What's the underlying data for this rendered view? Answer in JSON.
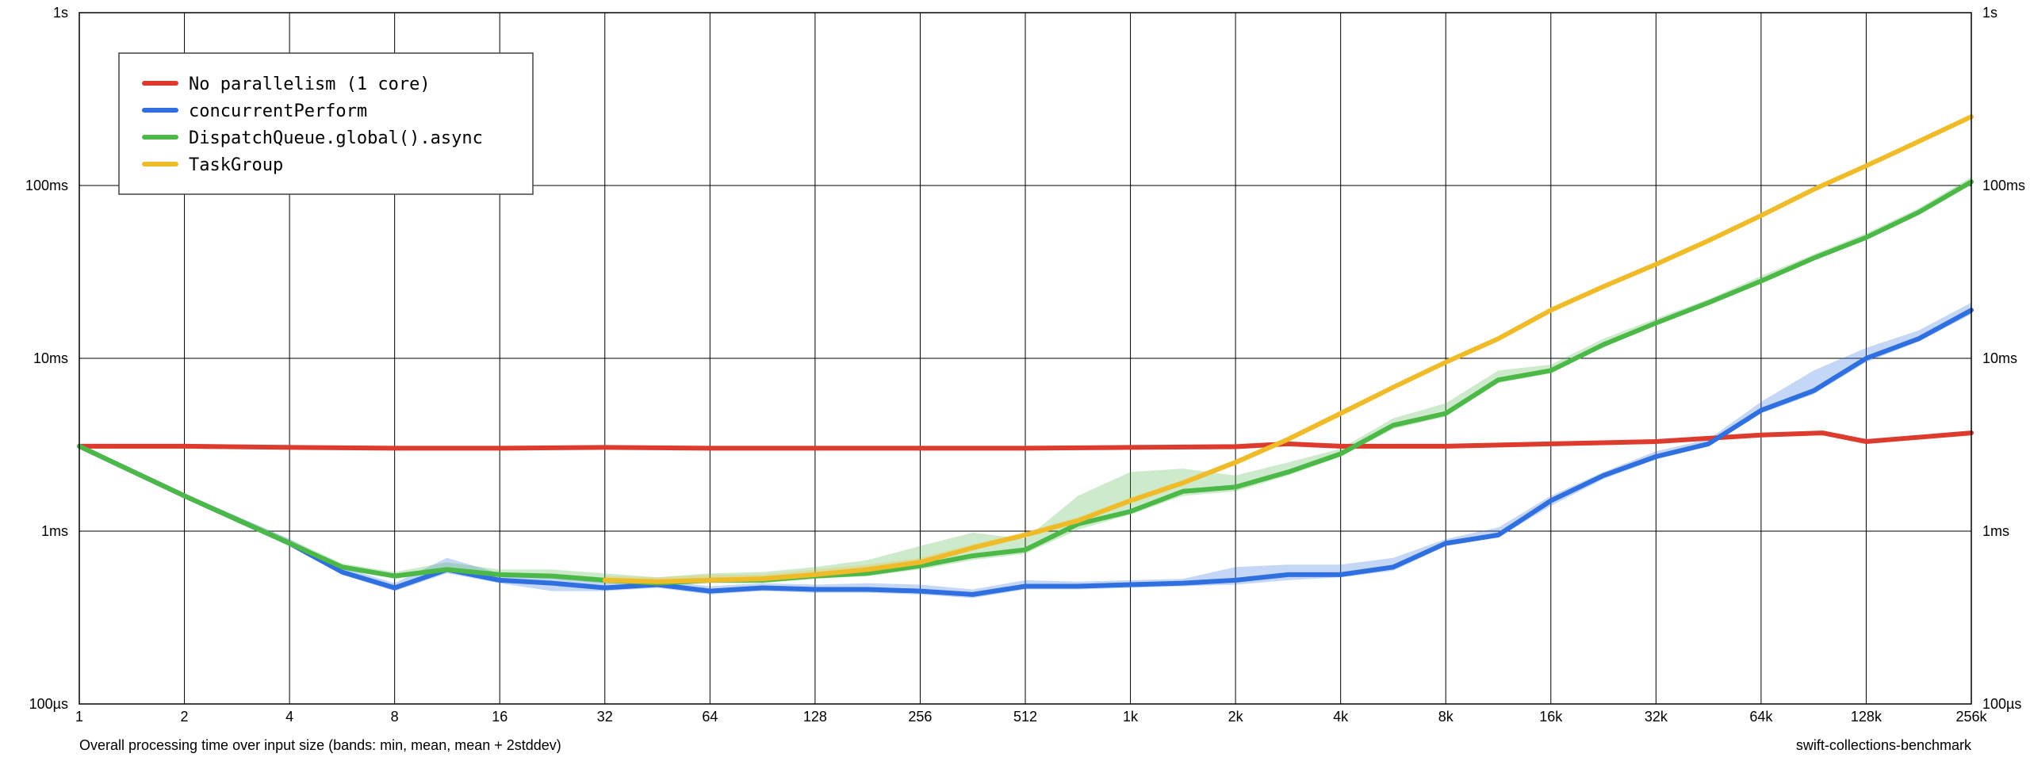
{
  "chart_data": {
    "type": "line",
    "x_scale": "log2",
    "y_scale": "log10",
    "x_ticks": [
      "1",
      "2",
      "4",
      "8",
      "16",
      "32",
      "64",
      "128",
      "256",
      "512",
      "1k",
      "2k",
      "4k",
      "8k",
      "16k",
      "32k",
      "64k",
      "128k",
      "256k"
    ],
    "x_tick_values": [
      1,
      2,
      4,
      8,
      16,
      32,
      64,
      128,
      256,
      512,
      1024,
      2048,
      4096,
      8192,
      16384,
      32768,
      65536,
      131072,
      262144
    ],
    "y_ticks": [
      "100µs",
      "1ms",
      "10ms",
      "100ms",
      "1s"
    ],
    "y_tick_values": [
      0.0001,
      0.001,
      0.01,
      0.1,
      1
    ],
    "xlim": [
      1,
      262144
    ],
    "ylim": [
      0.0001,
      1
    ],
    "grid": true,
    "legend_position": "top-left",
    "caption_left": "Overall processing time over input size (bands: min, mean, mean + 2stddev)",
    "caption_right": "swift-collections-benchmark",
    "colors": {
      "No parallelism (1 core)": "#dc3b2e",
      "concurrentPerform": "#2f6fe0",
      "DispatchQueue.global().async": "#4cb847",
      "TaskGroup": "#f0bb28"
    },
    "series": [
      {
        "name": "No parallelism (1 core)",
        "x": [
          1,
          2,
          4,
          8,
          16,
          32,
          64,
          128,
          256,
          512,
          1024,
          2048,
          2896,
          4096,
          8192,
          16384,
          32768,
          65536,
          98304,
          131072,
          262144
        ],
        "y": [
          0.0031,
          0.0031,
          0.00305,
          0.00302,
          0.00302,
          0.00305,
          0.00302,
          0.00302,
          0.00302,
          0.00302,
          0.00305,
          0.00308,
          0.0032,
          0.0031,
          0.0031,
          0.0032,
          0.0033,
          0.0036,
          0.0037,
          0.0033,
          0.0037
        ],
        "band_low": [
          0.003,
          0.003,
          0.00298,
          0.00297,
          0.00297,
          0.00298,
          0.00297,
          0.00297,
          0.00297,
          0.00297,
          0.00298,
          0.003,
          0.0031,
          0.003,
          0.003,
          0.0031,
          0.0032,
          0.0035,
          0.0036,
          0.0032,
          0.0036
        ],
        "band_high": [
          0.0032,
          0.0032,
          0.00315,
          0.0031,
          0.0031,
          0.00315,
          0.0031,
          0.0031,
          0.0031,
          0.0031,
          0.00315,
          0.0032,
          0.0033,
          0.0032,
          0.0032,
          0.0033,
          0.0034,
          0.0037,
          0.0038,
          0.0034,
          0.0038
        ]
      },
      {
        "name": "concurrentPerform",
        "x": [
          1,
          2,
          4,
          5.66,
          8,
          11.3,
          16,
          22.6,
          32,
          45.3,
          64,
          90.5,
          128,
          181,
          256,
          362,
          512,
          724,
          1024,
          1448,
          2048,
          2896,
          4096,
          5793,
          8192,
          11585,
          16384,
          23170,
          32768,
          46341,
          65536,
          92682,
          131072,
          185364,
          262144
        ],
        "y": [
          0.0031,
          0.0016,
          0.00085,
          0.00058,
          0.00047,
          0.0006,
          0.00052,
          0.0005,
          0.00047,
          0.00049,
          0.00045,
          0.00047,
          0.00046,
          0.00046,
          0.00045,
          0.00043,
          0.00048,
          0.00048,
          0.00049,
          0.0005,
          0.00052,
          0.00056,
          0.00056,
          0.00062,
          0.00085,
          0.00095,
          0.0015,
          0.0021,
          0.0027,
          0.0032,
          0.005,
          0.0065,
          0.01,
          0.013,
          0.019
        ],
        "band_low": [
          0.003,
          0.00155,
          0.00082,
          0.00056,
          0.00045,
          0.00057,
          0.0005,
          0.00045,
          0.00045,
          0.00047,
          0.00043,
          0.00045,
          0.00044,
          0.00044,
          0.00043,
          0.00041,
          0.00046,
          0.00046,
          0.00047,
          0.00048,
          0.00049,
          0.00052,
          0.00054,
          0.00059,
          0.00082,
          0.00092,
          0.0014,
          0.002,
          0.0026,
          0.0031,
          0.0048,
          0.0062,
          0.0095,
          0.0125,
          0.018
        ],
        "band_high": [
          0.0032,
          0.00165,
          0.0009,
          0.00062,
          0.0005,
          0.0007,
          0.00057,
          0.00056,
          0.00052,
          0.00052,
          0.00048,
          0.0005,
          0.00049,
          0.0005,
          0.00049,
          0.00046,
          0.00052,
          0.00051,
          0.00052,
          0.00053,
          0.00062,
          0.00064,
          0.00064,
          0.0007,
          0.0009,
          0.00105,
          0.0016,
          0.0022,
          0.0029,
          0.0034,
          0.0056,
          0.0085,
          0.0115,
          0.0145,
          0.021
        ]
      },
      {
        "name": "DispatchQueue.global().async",
        "x": [
          1,
          2,
          4,
          5.66,
          8,
          11.3,
          16,
          22.6,
          32,
          45.3,
          64,
          90.5,
          128,
          181,
          256,
          362,
          512,
          724,
          1024,
          1448,
          2048,
          2896,
          4096,
          5793,
          8192,
          11585,
          16384,
          23170,
          32768,
          46341,
          65536,
          92682,
          131072,
          185364,
          262144
        ],
        "y": [
          0.0031,
          0.0016,
          0.00085,
          0.00062,
          0.00055,
          0.0006,
          0.00056,
          0.00055,
          0.00052,
          0.0005,
          0.00052,
          0.00052,
          0.00055,
          0.00057,
          0.00063,
          0.00072,
          0.00078,
          0.0011,
          0.0013,
          0.0017,
          0.0018,
          0.0022,
          0.0028,
          0.0041,
          0.0048,
          0.0075,
          0.0085,
          0.012,
          0.016,
          0.021,
          0.028,
          0.038,
          0.05,
          0.07,
          0.105
        ],
        "band_low": [
          0.003,
          0.00155,
          0.00082,
          0.0006,
          0.00053,
          0.00058,
          0.00054,
          0.00053,
          0.0005,
          0.00048,
          0.0005,
          0.0005,
          0.00053,
          0.00055,
          0.0006,
          0.00068,
          0.00074,
          0.00102,
          0.00125,
          0.0016,
          0.0017,
          0.0021,
          0.0027,
          0.0039,
          0.0046,
          0.0072,
          0.0082,
          0.0116,
          0.0155,
          0.0205,
          0.027,
          0.037,
          0.049,
          0.068,
          0.102
        ],
        "band_high": [
          0.0032,
          0.00165,
          0.0009,
          0.00065,
          0.00058,
          0.00066,
          0.0006,
          0.0006,
          0.00057,
          0.00054,
          0.00057,
          0.00058,
          0.00062,
          0.00068,
          0.00082,
          0.00098,
          0.0009,
          0.0016,
          0.0022,
          0.0023,
          0.0021,
          0.0025,
          0.003,
          0.0045,
          0.0055,
          0.0085,
          0.0092,
          0.013,
          0.017,
          0.022,
          0.03,
          0.04,
          0.053,
          0.074,
          0.112
        ]
      },
      {
        "name": "TaskGroup",
        "x": [
          32,
          45.3,
          64,
          90.5,
          128,
          181,
          256,
          362,
          512,
          724,
          1024,
          1448,
          2048,
          2896,
          4096,
          5793,
          8192,
          11585,
          16384,
          23170,
          32768,
          46341,
          65536,
          92682,
          131072,
          185364,
          262144
        ],
        "y": [
          0.00052,
          0.00051,
          0.00052,
          0.00053,
          0.00056,
          0.0006,
          0.00066,
          0.0008,
          0.00095,
          0.00115,
          0.0015,
          0.0019,
          0.0025,
          0.0034,
          0.0048,
          0.0068,
          0.0095,
          0.013,
          0.019,
          0.026,
          0.035,
          0.048,
          0.067,
          0.095,
          0.13,
          0.18,
          0.25
        ],
        "band_low": [
          0.0005,
          0.0005,
          0.0005,
          0.00052,
          0.00055,
          0.00059,
          0.00065,
          0.00078,
          0.00093,
          0.00112,
          0.00146,
          0.00185,
          0.0024,
          0.0033,
          0.0047,
          0.0066,
          0.0093,
          0.0127,
          0.0186,
          0.0255,
          0.0343,
          0.047,
          0.066,
          0.093,
          0.128,
          0.177,
          0.246
        ],
        "band_high": [
          0.00055,
          0.00054,
          0.00056,
          0.00056,
          0.0006,
          0.00064,
          0.0007,
          0.00084,
          0.00099,
          0.0012,
          0.00156,
          0.00198,
          0.0026,
          0.0035,
          0.005,
          0.007,
          0.0098,
          0.0134,
          0.0196,
          0.0268,
          0.036,
          0.0495,
          0.069,
          0.098,
          0.134,
          0.185,
          0.258
        ]
      }
    ]
  }
}
